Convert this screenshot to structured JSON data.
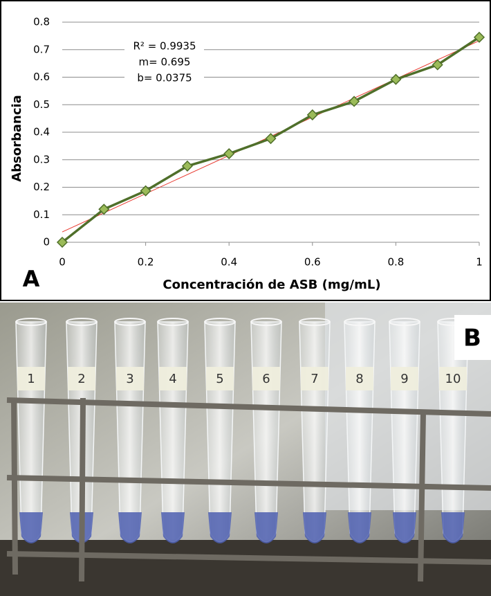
{
  "chart_data": {
    "type": "line",
    "xlabel": "Concentración de ASB (mg/mL)",
    "ylabel": "Absorbancia",
    "x": [
      0,
      0.1,
      0.2,
      0.3,
      0.4,
      0.5,
      0.6,
      0.7,
      0.8,
      0.9,
      1
    ],
    "series": [
      {
        "color": "#4f6f2a",
        "marker_color": "#9bbb59",
        "values": [
          0,
          0.12,
          0.187,
          0.277,
          0.322,
          0.377,
          0.463,
          0.512,
          0.592,
          0.645,
          0.745
        ]
      }
    ],
    "trendline": {
      "slope": 0.695,
      "intercept": 0.0375,
      "color": "#e8392f"
    },
    "annotations": [
      "R² = 0.9935",
      "m= 0.695",
      "b= 0.0375"
    ],
    "xlim": [
      0,
      1
    ],
    "xticks": [
      0,
      0.2,
      0.4,
      0.6,
      0.8,
      1
    ],
    "ylim": [
      0,
      0.8
    ],
    "yticks": [
      0,
      0.1,
      0.2,
      0.3,
      0.4,
      0.5,
      0.6,
      0.7,
      0.8
    ],
    "grid": true
  },
  "panel_labels": [
    "A",
    "B"
  ],
  "photo": {
    "tube_labels": [
      "1",
      "2",
      "3",
      "4",
      "5",
      "6",
      "7",
      "8",
      "9",
      "10"
    ]
  }
}
